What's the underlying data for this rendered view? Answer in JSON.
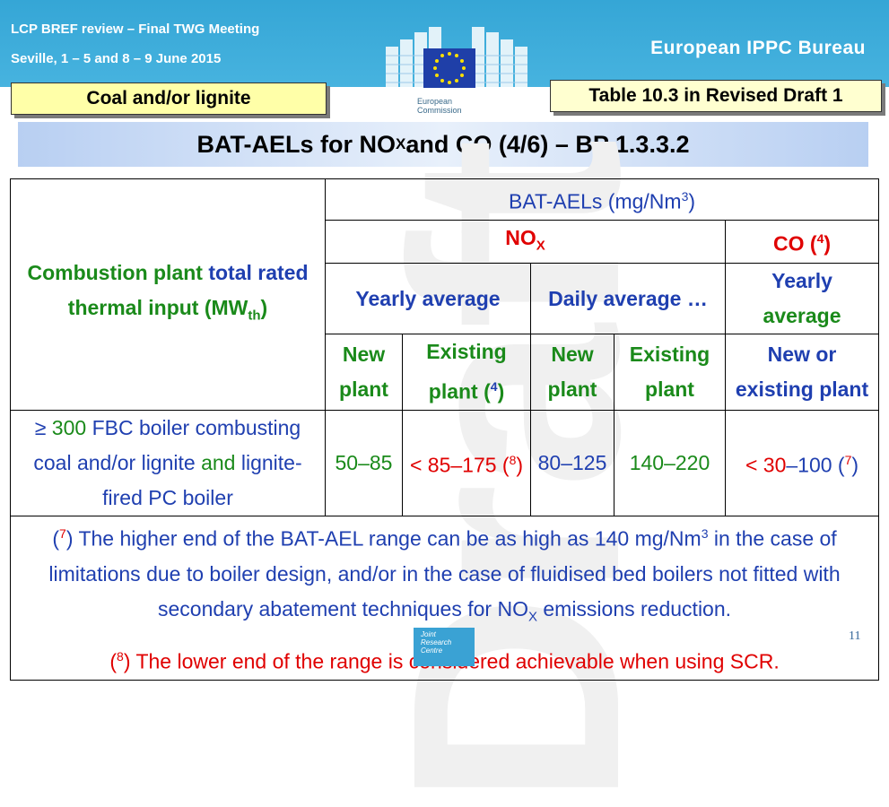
{
  "header": {
    "meeting": "LCP BREF review – Final TWG Meeting",
    "location": "Seville, 1 – 5 and 8 – 9 June 2015",
    "bureau": "European IPPC Bureau",
    "logo_text": "European\nCommission",
    "fuel_label": "Coal and/or lignite",
    "table_ref": "Table 10.3 in Revised Draft 1"
  },
  "title": {
    "pre": "BAT-AELs for NO",
    "sub": "X",
    "post": " and CO (4/6) – BP 1.3.3.2"
  },
  "watermark": "Draft",
  "table": {
    "row_header": {
      "a": "Combustion plant ",
      "b": "total rated",
      "c": "thermal input (MW",
      "sub": "th",
      "d": ")"
    },
    "bat_aels": {
      "pre": "BAT-AELs (mg/Nm",
      "sup": "3",
      "post": ")"
    },
    "nox": {
      "pre": "NO",
      "sub": "X"
    },
    "co": {
      "pre": "CO (",
      "sup": "4",
      "post": ")"
    },
    "yearly_average": "Yearly average",
    "daily_average": "Daily average …",
    "co_yearly_1": "Yearly",
    "co_yearly_2": "average",
    "new_plant_1": "New",
    "new_plant_2": "plant",
    "existing_1": "Existing",
    "existing_2_pre": "plant (",
    "existing_2_sup": "4",
    "existing_2_post": ")",
    "new_d_1": "New",
    "new_d_2": "plant",
    "exist_d_1": "Existing",
    "exist_d_2": "plant",
    "new_or_1": "New or",
    "new_or_2": "existing plant",
    "row": {
      "label_geq": "≥",
      "label_300": " 300 ",
      "label_fbc": "FBC boiler combusting",
      "label_coal": "coal and/or lignite ",
      "label_and": "and",
      "label_lignite": " lignite-",
      "label_fired": "fired PC boiler",
      "v1": "50–85",
      "v2_lt": "< 85",
      "v2_rest": "–175 (",
      "v2_sup": "8",
      "v2_post": ")",
      "v3": "80–125",
      "v4": "140–220",
      "v5_lt": "< 30",
      "v5_rest": "–100 (",
      "v5_sup": "7",
      "v5_post": ")"
    },
    "note7": {
      "open": "(",
      "sup": "7",
      "text1": ") The higher end of the BAT-AEL range can be as high as 140 mg/Nm",
      "sup2": "3",
      "text2": " in the case of limitations due to boiler design, and/or in the case of fluidised bed boilers not fitted with secondary abatement techniques for NO",
      "sub": "X",
      "text3": " emissions reduction."
    },
    "note8": {
      "open": "(",
      "sup": "8",
      "text": ") The lower end of the range is considered achievable when using SCR."
    }
  },
  "footer": {
    "jrc": "Joint\nResearch\nCentre",
    "page_number": "11"
  }
}
